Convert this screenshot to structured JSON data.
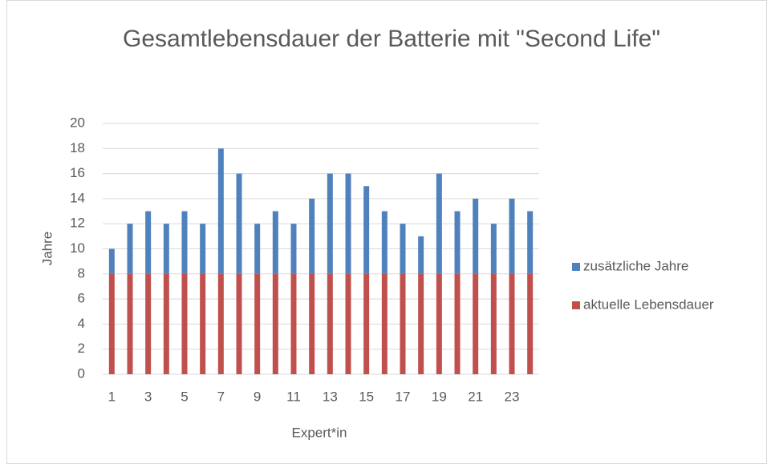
{
  "chart_data": {
    "type": "stacked_bar",
    "title": "Gesamtlebensdauer der Batterie mit \"Second Life\"",
    "x_label": "Expert*in",
    "y_label": "Jahre",
    "categories": [
      "1",
      null,
      "3",
      null,
      "5",
      null,
      "7",
      null,
      "9",
      null,
      "11",
      null,
      "13",
      null,
      "15",
      null,
      "17",
      null,
      "19",
      null,
      "21",
      null,
      "23",
      null
    ],
    "series": [
      {
        "name": "aktuelle Lebensdauer",
        "color": "#c0504d",
        "values": [
          8,
          8,
          8,
          8,
          8,
          8,
          8,
          8,
          8,
          8,
          8,
          8,
          8,
          8,
          8,
          8,
          8,
          8,
          8,
          8,
          8,
          8,
          8,
          8
        ]
      },
      {
        "name": "zusätzliche Jahre",
        "color": "#4f81bd",
        "values": [
          2,
          4,
          5,
          4,
          5,
          4,
          10,
          8,
          4,
          5,
          4,
          6,
          8,
          8,
          7,
          5,
          4,
          3,
          8,
          5,
          6,
          4,
          6,
          5
        ]
      }
    ],
    "ylim": [
      0,
      20
    ],
    "yticks": [
      0,
      2,
      4,
      6,
      8,
      10,
      12,
      14,
      16,
      18,
      20
    ],
    "grid": true,
    "legend": "right"
  }
}
